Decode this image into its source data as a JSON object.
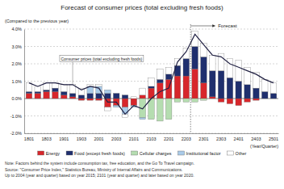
{
  "chart_data": {
    "type": "bar",
    "title": "Forecast of consumer prices (total excluding fresh foods)",
    "y_label": "(Compared to the previous year)",
    "x_label": "(Year/Quarter)",
    "stacked": true,
    "grid": true,
    "legend": "bottom",
    "categories": [
      "1801",
      null,
      "1803",
      null,
      "1901",
      null,
      "1903",
      null,
      "2001",
      null,
      "2003",
      null,
      "2101",
      null,
      "2103",
      null,
      "2201",
      null,
      "2203",
      null,
      "2301",
      null,
      "2303",
      null,
      "2401",
      null,
      "2403",
      null,
      "2501"
    ],
    "ylim": [
      -2,
      4
    ],
    "yticks": [
      {
        "value": -2,
        "label": "-2.0%"
      },
      {
        "value": -1,
        "label": "-1.0%"
      },
      {
        "value": 0,
        "label": "0.0%"
      },
      {
        "value": 1,
        "label": "1.0%"
      },
      {
        "value": 2,
        "label": "2.0%"
      },
      {
        "value": 3,
        "label": "3.0%"
      },
      {
        "value": 4,
        "label": "4.0%"
      }
    ],
    "series": [
      {
        "name": "Energy",
        "color": "#d7262b",
        "type": "bar",
        "values": [
          0.3,
          0.3,
          0.4,
          0.4,
          0.2,
          0.1,
          -0.1,
          -0.1,
          -0.1,
          -0.5,
          -0.4,
          -0.5,
          -0.4,
          0.2,
          0.6,
          0.9,
          1.1,
          1.3,
          1.3,
          1.7,
          0.9,
          0.1,
          -0.2,
          -0.3,
          -0.4,
          -0.2,
          -0.1,
          0.0,
          0.0
        ]
      },
      {
        "name": "Food (except fresh foods)",
        "color": "#1f2f6e",
        "type": "bar",
        "values": [
          0.1,
          0.1,
          0.1,
          0.2,
          0.2,
          0.2,
          0.2,
          0.3,
          0.3,
          0.3,
          0.3,
          0.2,
          0.0,
          0.0,
          0.1,
          0.2,
          0.3,
          0.6,
          1.0,
          1.3,
          1.5,
          1.5,
          1.6,
          1.2,
          1.0,
          0.8,
          0.6,
          0.4,
          0.3
        ]
      },
      {
        "name": "Cellular charges",
        "color": "#b5ddb0",
        "type": "bar",
        "values": [
          0.0,
          0.0,
          0.0,
          0.0,
          0.0,
          0.0,
          0.0,
          0.0,
          0.0,
          0.0,
          0.0,
          0.0,
          0.0,
          -1.1,
          -1.2,
          -1.3,
          -1.2,
          -0.2,
          -0.2,
          -0.2,
          -0.1,
          0.0,
          0.0,
          0.0,
          0.0,
          0.0,
          0.0,
          0.0,
          0.0
        ]
      },
      {
        "name": "Institutional factor",
        "color": "#a9cbe9",
        "type": "bar",
        "values": [
          0.0,
          0.0,
          0.0,
          0.0,
          0.0,
          0.0,
          0.0,
          0.4,
          0.4,
          0.2,
          -0.1,
          -0.4,
          -0.1,
          -0.1,
          0.0,
          0.0,
          0.0,
          0.0,
          0.0,
          0.0,
          0.0,
          0.0,
          0.0,
          0.0,
          0.0,
          0.0,
          0.0,
          0.0,
          0.0
        ]
      },
      {
        "name": "Other",
        "color": "#ffffff",
        "type": "bar",
        "values": [
          0.5,
          0.3,
          0.4,
          0.3,
          0.4,
          0.5,
          0.4,
          0.1,
          0.1,
          -0.2,
          0.0,
          -0.2,
          0.1,
          0.4,
          0.5,
          0.6,
          0.4,
          0.4,
          0.6,
          0.9,
          0.8,
          0.9,
          1.0,
          1.1,
          1.2,
          1.0,
          0.9,
          0.7,
          0.6
        ]
      },
      {
        "name": "Consumer prices (total excluding fresh foods)",
        "color": "#222244",
        "type": "line",
        "values": [
          0.9,
          0.7,
          0.9,
          0.9,
          0.8,
          0.8,
          0.5,
          0.7,
          0.6,
          -0.2,
          -0.2,
          -0.9,
          -0.4,
          -0.6,
          0.0,
          0.4,
          0.6,
          2.1,
          2.7,
          3.7,
          3.1,
          2.5,
          2.4,
          2.0,
          1.8,
          1.6,
          1.4,
          1.1,
          0.9
        ]
      }
    ],
    "annotations": [
      {
        "text": "Forecast",
        "x": "2203"
      }
    ],
    "notes": [
      "Note: Factors behind the system include consumption tax, free education, and the Go To Travel campaign.",
      "Source: \"Consumer Price Index,\" Statistics Bureau, Ministry of Internal Affairs and Communications.",
      "Up to 2004 (year and quarter) based on year 2015; 2101 (year and quarter) and later based on year 2020."
    ]
  }
}
